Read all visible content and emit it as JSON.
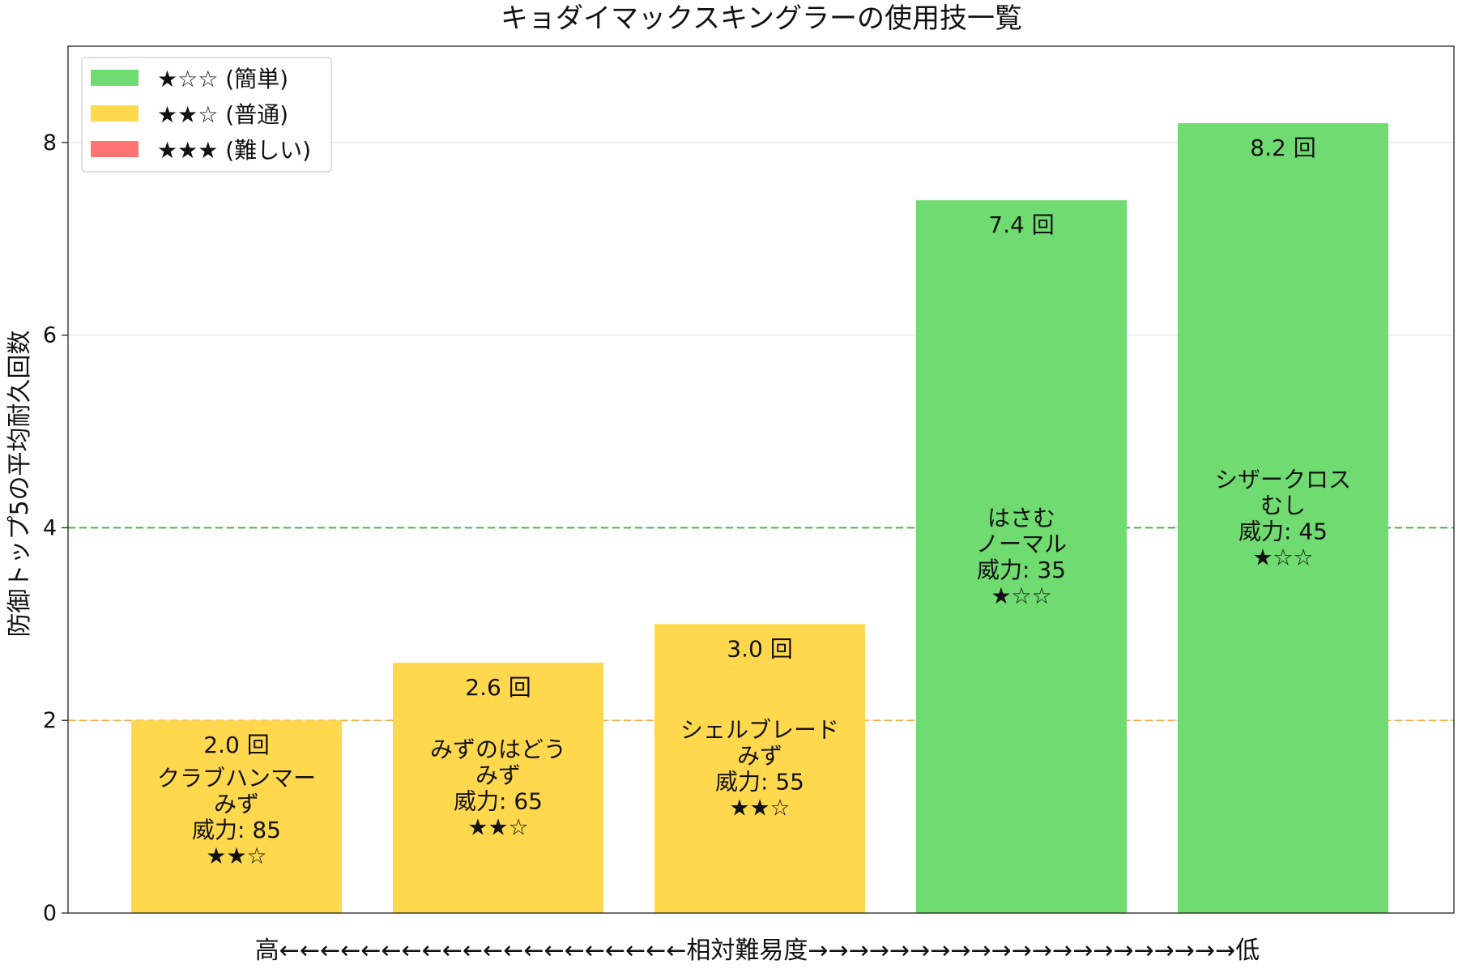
{
  "chart_data": {
    "type": "bar",
    "title": "キョダイマックスキングラーの使用技一覧",
    "ylabel": "防御トップ5の平均耐久回数",
    "xlabel": "高←←←←←←←←←←←←←←←←←←←←相対難易度→→→→→→→→→→→→→→→→→→→→→低",
    "ylim": [
      0,
      9
    ],
    "yticks": [
      0,
      2,
      4,
      6,
      8
    ],
    "grid": "horizontal",
    "legend_position": "top-left",
    "legend": [
      {
        "label": "★☆☆ (簡単)",
        "color": "#70db70"
      },
      {
        "label": "★★☆ (普通)",
        "color": "#ffd84d"
      },
      {
        "label": "★★★ (難しい)",
        "color": "#ff7373"
      }
    ],
    "reference_lines": [
      {
        "value": 4,
        "color": "#2ca02c"
      },
      {
        "value": 2,
        "color": "#f5a623"
      }
    ],
    "bars": [
      {
        "value": 2.0,
        "value_label": "2.0 回",
        "move": "クラブハンマー",
        "type": "みず",
        "power": "威力: 85",
        "stars": "★★☆",
        "color": "#ffd84d"
      },
      {
        "value": 2.6,
        "value_label": "2.6 回",
        "move": "みずのはどう",
        "type": "みず",
        "power": "威力: 65",
        "stars": "★★☆",
        "color": "#ffd84d"
      },
      {
        "value": 3.0,
        "value_label": "3.0 回",
        "move": "シェルブレード",
        "type": "みず",
        "power": "威力: 55",
        "stars": "★★☆",
        "color": "#ffd84d"
      },
      {
        "value": 7.4,
        "value_label": "7.4 回",
        "move": "はさむ",
        "type": "ノーマル",
        "power": "威力: 35",
        "stars": "★☆☆",
        "color": "#70db70"
      },
      {
        "value": 8.2,
        "value_label": "8.2 回",
        "move": "シザークロス",
        "type": "むし",
        "power": "威力: 45",
        "stars": "★☆☆",
        "color": "#70db70"
      }
    ]
  }
}
